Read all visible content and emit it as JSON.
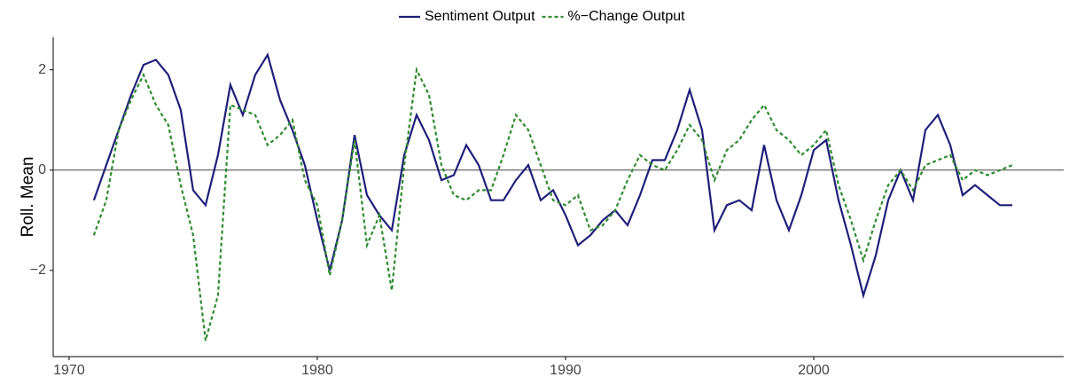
{
  "chart_data": {
    "type": "line",
    "y_label": "Roll. Mean",
    "x": [
      1971.0,
      1971.5,
      1972.0,
      1972.5,
      1973.0,
      1973.5,
      1974.0,
      1974.5,
      1975.0,
      1975.5,
      1976.0,
      1976.5,
      1977.0,
      1977.5,
      1978.0,
      1978.5,
      1979.0,
      1979.5,
      1980.0,
      1980.5,
      1981.0,
      1981.5,
      1982.0,
      1982.5,
      1983.0,
      1983.5,
      1984.0,
      1984.5,
      1985.0,
      1985.5,
      1986.0,
      1986.5,
      1987.0,
      1987.5,
      1988.0,
      1988.5,
      1989.0,
      1989.5,
      1990.0,
      1990.5,
      1991.0,
      1991.5,
      1992.0,
      1992.5,
      1993.0,
      1993.5,
      1994.0,
      1994.5,
      1995.0,
      1995.5,
      1996.0,
      1996.5,
      1997.0,
      1997.5,
      1998.0,
      1998.5,
      1999.0,
      1999.5,
      2000.0,
      2000.5,
      2001.0,
      2001.5,
      2002.0,
      2002.5,
      2003.0,
      2003.5,
      2004.0,
      2004.5,
      2005.0,
      2005.5,
      2006.0,
      2006.5,
      2007.0,
      2007.5,
      2008.0
    ],
    "series": [
      {
        "name": "Sentiment Output",
        "color": "#1f1f7a",
        "line_style": "solid",
        "values": [
          -0.6,
          0.1,
          0.8,
          1.5,
          2.1,
          2.2,
          1.9,
          1.2,
          -0.4,
          -0.7,
          0.3,
          1.7,
          1.1,
          1.9,
          2.3,
          1.4,
          0.8,
          0.1,
          -1.0,
          -2.0,
          -1.0,
          0.7,
          -0.5,
          -0.9,
          -1.2,
          0.3,
          1.1,
          0.6,
          -0.2,
          -0.1,
          0.5,
          0.1,
          -0.6,
          -0.6,
          -0.2,
          0.1,
          -0.6,
          -0.4,
          -0.9,
          -1.5,
          -1.3,
          -1.0,
          -0.8,
          -1.1,
          -0.5,
          0.2,
          0.2,
          0.8,
          1.6,
          0.8,
          -1.2,
          -0.7,
          -0.6,
          -0.8,
          0.5,
          -0.6,
          -1.2,
          -0.5,
          0.4,
          0.6,
          -0.6,
          -1.5,
          -2.5,
          -1.7,
          -0.6,
          0.0,
          -0.6,
          0.8,
          1.1,
          0.5,
          -0.5,
          -0.3,
          -0.5,
          -0.7,
          -0.7
        ]
      },
      {
        "name": "%−Change Output",
        "color": "#2e8b2e",
        "line_style": "dashed",
        "values": [
          -1.3,
          -0.6,
          0.8,
          1.4,
          1.9,
          1.3,
          0.9,
          -0.3,
          -1.3,
          -3.4,
          -2.5,
          1.3,
          1.2,
          1.1,
          0.5,
          0.7,
          1.0,
          -0.2,
          -0.7,
          -2.1,
          -1.0,
          0.6,
          -1.5,
          -0.9,
          -2.4,
          0.1,
          2.0,
          1.5,
          0.1,
          -0.5,
          -0.6,
          -0.4,
          -0.4,
          0.3,
          1.1,
          0.8,
          0.1,
          -0.6,
          -0.7,
          -0.5,
          -1.2,
          -1.1,
          -0.8,
          -0.2,
          0.3,
          0.1,
          0.0,
          0.4,
          0.9,
          0.6,
          -0.2,
          0.4,
          0.6,
          1.0,
          1.3,
          0.8,
          0.6,
          0.3,
          0.5,
          0.8,
          -0.3,
          -1.0,
          -1.8,
          -1.0,
          -0.3,
          0.0,
          -0.4,
          0.1,
          0.2,
          0.3,
          -0.2,
          0.0,
          -0.1,
          0.0,
          0.1
        ]
      }
    ],
    "xlim": [
      1969.36,
      2010.07
    ],
    "ylim": [
      -3.72,
      2.65
    ],
    "xticks": [
      1970,
      1980,
      1990,
      2000
    ],
    "yticks": [
      {
        "value": -2,
        "label": "−2"
      },
      0,
      2
    ],
    "reference_line": 0,
    "legend": "top",
    "grid": false
  }
}
